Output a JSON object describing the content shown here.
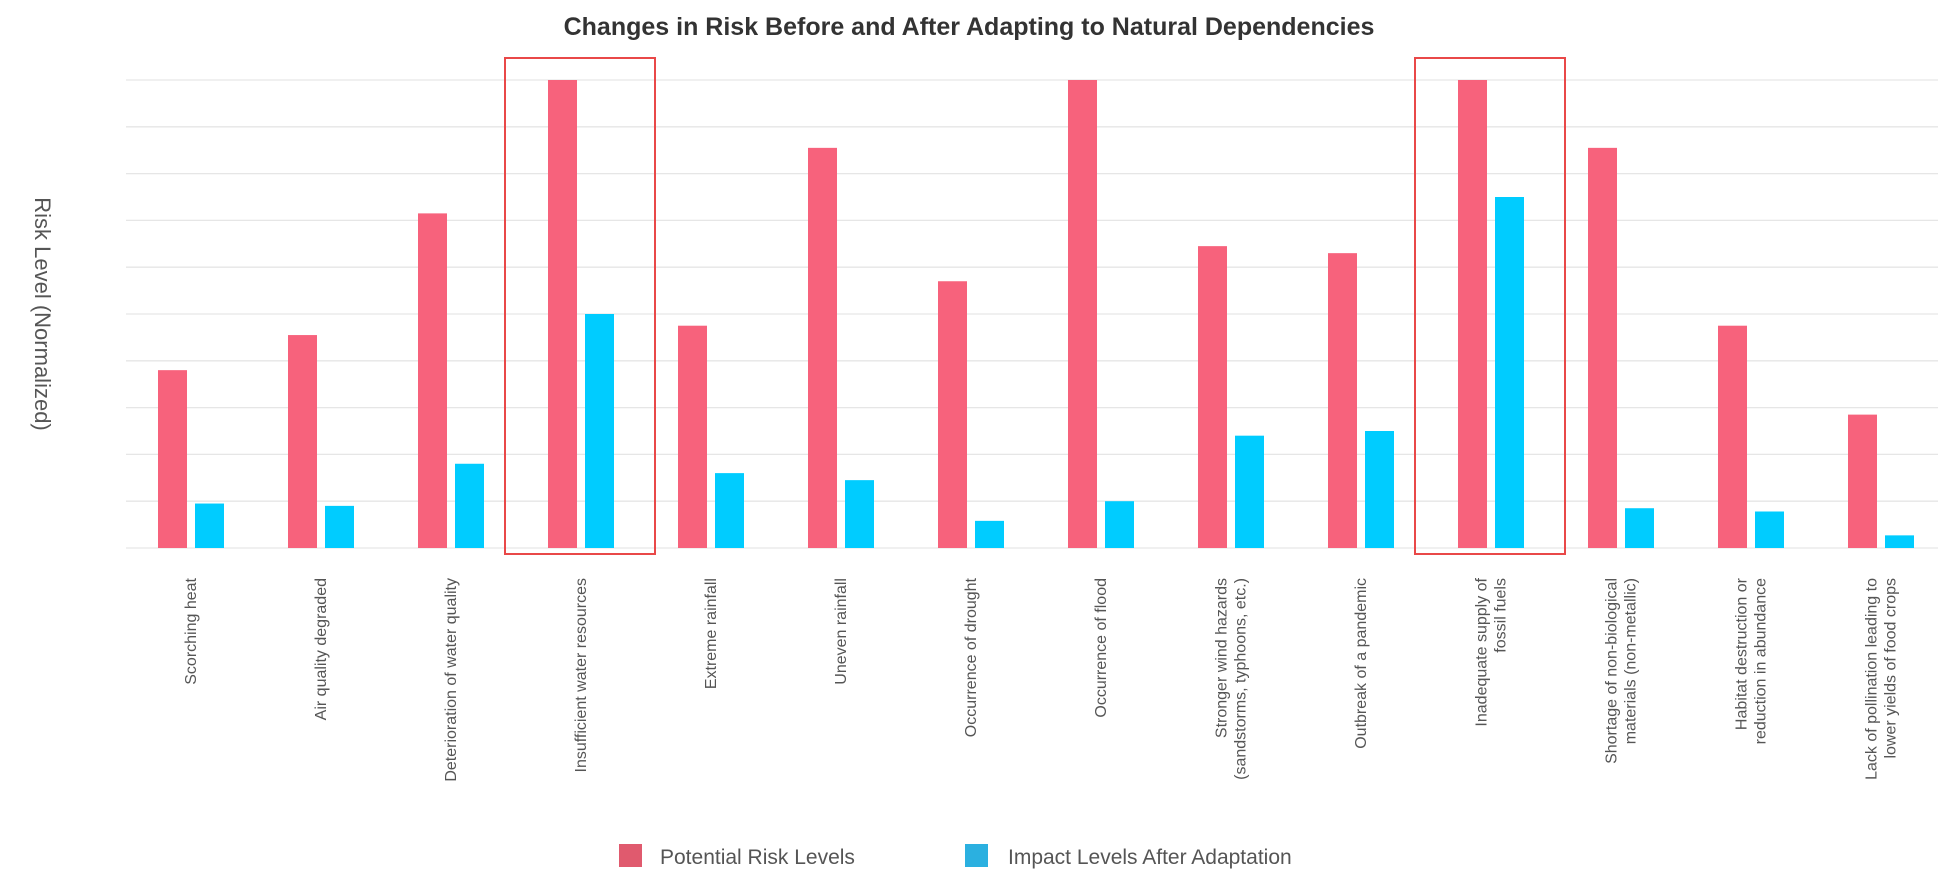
{
  "chart_data": {
    "type": "bar",
    "title": "Changes in Risk Before and After Adapting to Natural Dependencies",
    "xlabel": "",
    "ylabel": "Risk Level (Normalized)",
    "ylim": [
      0,
      1
    ],
    "grid": true,
    "legend_position": "bottom",
    "categories": [
      [
        "Scorching heat"
      ],
      [
        "Air quality degraded"
      ],
      [
        "Deterioration of water quality"
      ],
      [
        "Insufficient water resources"
      ],
      [
        "Extreme rainfall"
      ],
      [
        "Uneven rainfall"
      ],
      [
        "Occurrence of drought"
      ],
      [
        "Occurrence of flood"
      ],
      [
        "Stronger wind hazards",
        "(sandstorms, typhoons, etc.)"
      ],
      [
        "Outbreak of a pandemic"
      ],
      [
        "Inadequate supply of",
        "fossil fuels"
      ],
      [
        "Shortage of non-biological",
        "materials (non-metallic)"
      ],
      [
        "Habitat destruction or",
        "reduction in abundance"
      ],
      [
        "Lack of pollination leading to",
        "lower yields of food crops"
      ]
    ],
    "series": [
      {
        "name": "Potential Risk Levels",
        "color": "#F7627C",
        "values": [
          0.38,
          0.455,
          0.715,
          1.0,
          0.475,
          0.855,
          0.57,
          1.0,
          0.645,
          0.63,
          1.0,
          0.855,
          0.475,
          0.285
        ]
      },
      {
        "name": "Impact Levels After Adaptation",
        "color": "#00CCFF",
        "values": [
          0.095,
          0.09,
          0.18,
          0.5,
          0.16,
          0.145,
          0.058,
          0.1,
          0.24,
          0.25,
          0.75,
          0.085,
          0.078,
          0.027
        ]
      }
    ],
    "legend_swatches": [
      "#E05A6E",
      "#2BB0E0"
    ],
    "highlight_color": "#E94848",
    "highlighted_categories": [
      "Insufficient water resources",
      "Inadequate supply of fossil fuels"
    ]
  }
}
